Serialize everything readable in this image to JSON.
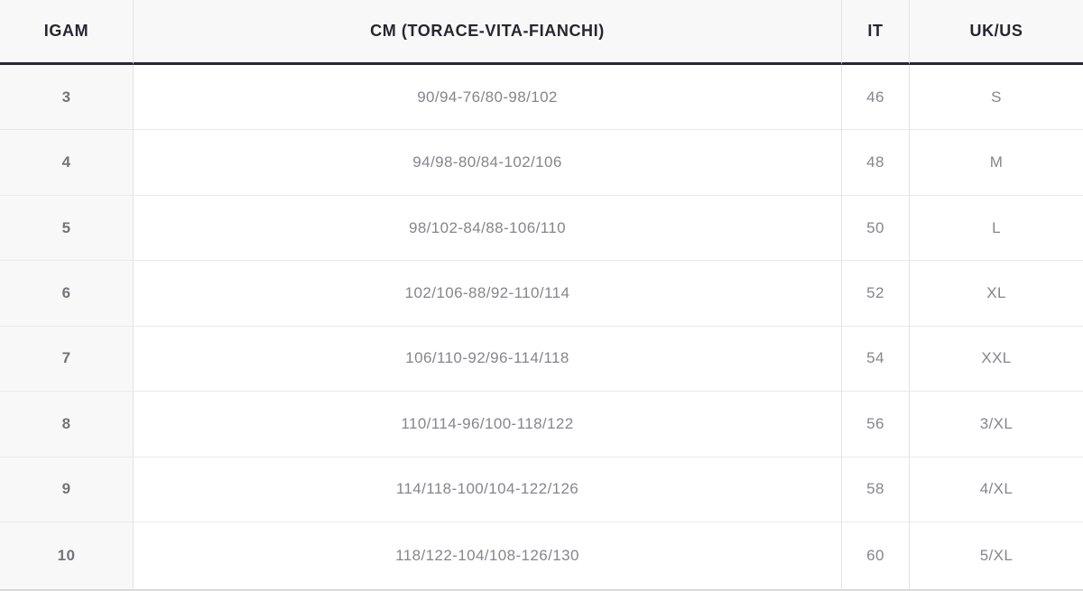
{
  "table": {
    "title": "size-conversion-table",
    "columns": [
      {
        "key": "igam",
        "label": "IGAM"
      },
      {
        "key": "cm",
        "label": "CM (TORACE-VITA-FIANCHI)"
      },
      {
        "key": "it",
        "label": "IT"
      },
      {
        "key": "ukus",
        "label": "UK/US"
      }
    ],
    "rows": [
      {
        "igam": "3",
        "cm": "90/94-76/80-98/102",
        "it": "46",
        "ukus": "S"
      },
      {
        "igam": "4",
        "cm": "94/98-80/84-102/106",
        "it": "48",
        "ukus": "M"
      },
      {
        "igam": "5",
        "cm": "98/102-84/88-106/110",
        "it": "50",
        "ukus": "L"
      },
      {
        "igam": "6",
        "cm": "102/106-88/92-110/114",
        "it": "52",
        "ukus": "XL"
      },
      {
        "igam": "7",
        "cm": "106/110-92/96-114/118",
        "it": "54",
        "ukus": "XXL"
      },
      {
        "igam": "8",
        "cm": "110/114-96/100-118/122",
        "it": "56",
        "ukus": "3/XL"
      },
      {
        "igam": "9",
        "cm": "114/118-100/104-122/126",
        "it": "58",
        "ukus": "4/XL"
      },
      {
        "igam": "10",
        "cm": "118/122-104/108-126/130",
        "it": "60",
        "ukus": "5/XL"
      }
    ],
    "colors": {
      "header_background": "#f8f8f9",
      "first_column_background": "#f8f8f9",
      "header_separator": "#27272f",
      "header_text": "#26272e",
      "body_text": "#85868b",
      "first_column_text": "#737479",
      "grid_line": "#e4e4e6",
      "row_line": "#e9e9eb"
    }
  }
}
